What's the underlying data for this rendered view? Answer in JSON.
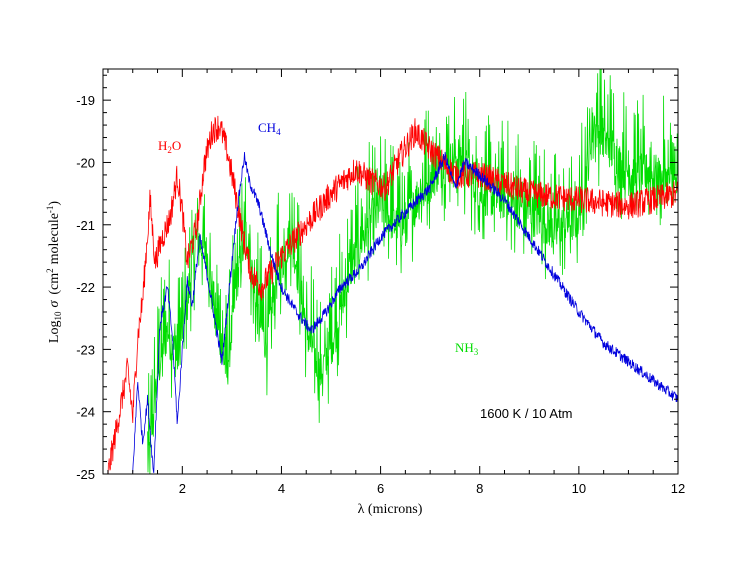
{
  "chart_data": {
    "type": "line",
    "title": "",
    "xlabel": "λ (microns)",
    "ylabel": "Log10 σ (cm2 molecule-1)",
    "ylabel_parts": {
      "log": "Log",
      "log_sub": "10",
      "sigma": "σ",
      "open": "(cm",
      "sup2": "2",
      "mid": "molecule",
      "supm1": "-1",
      "close": ")"
    },
    "xlim": [
      0.4,
      12
    ],
    "ylim": [
      -25,
      -18.5
    ],
    "xticks": [
      2,
      4,
      6,
      8,
      10,
      12
    ],
    "yticks": [
      -25,
      -24,
      -23,
      -22,
      -21,
      -20,
      -19
    ],
    "annotation": "1600 K / 10 Atm",
    "series": [
      {
        "name": "H2O",
        "label_main": "H",
        "label_sub": "2",
        "label_tail": "O",
        "color": "#ff0000",
        "noise": 0.45,
        "x": [
          0.5,
          0.9,
          1.0,
          1.1,
          1.2,
          1.35,
          1.45,
          1.6,
          1.75,
          1.9,
          2.0,
          2.1,
          2.3,
          2.45,
          2.6,
          2.75,
          2.9,
          3.05,
          3.25,
          3.4,
          3.6,
          4.0,
          4.5,
          5.0,
          5.5,
          5.8,
          6.1,
          6.4,
          6.7,
          7.0,
          7.5,
          8.0,
          9.0,
          10.0,
          11.0,
          12.0
        ],
        "y": [
          -25.0,
          -23.3,
          -24.1,
          -22.8,
          -22.2,
          -20.6,
          -21.6,
          -21.2,
          -20.9,
          -20.2,
          -20.8,
          -21.6,
          -21.0,
          -20.0,
          -19.5,
          -19.4,
          -19.8,
          -20.4,
          -21.3,
          -21.8,
          -22.0,
          -21.5,
          -21.0,
          -20.5,
          -20.1,
          -20.3,
          -20.4,
          -19.9,
          -19.5,
          -19.8,
          -20.2,
          -20.2,
          -20.5,
          -20.6,
          -20.7,
          -20.5
        ]
      },
      {
        "name": "CH4",
        "label_main": "CH",
        "label_sub": "4",
        "label_tail": "",
        "color": "#0000dd",
        "noise": 0.18,
        "x": [
          1.0,
          1.1,
          1.2,
          1.3,
          1.42,
          1.55,
          1.7,
          1.8,
          1.9,
          2.0,
          2.1,
          2.2,
          2.35,
          2.5,
          2.65,
          2.8,
          2.95,
          3.1,
          3.25,
          3.35,
          3.55,
          3.8,
          4.0,
          4.3,
          4.6,
          4.9,
          5.2,
          5.6,
          6.0,
          6.5,
          7.0,
          7.3,
          7.5,
          7.7,
          8.0,
          8.5,
          9.0,
          9.5,
          10.0,
          10.5,
          11.0,
          11.5,
          12.0
        ],
        "y": [
          -25.0,
          -23.5,
          -24.5,
          -23.8,
          -25.0,
          -22.6,
          -22.0,
          -22.8,
          -24.2,
          -23.0,
          -21.9,
          -22.3,
          -21.2,
          -21.8,
          -22.5,
          -23.2,
          -22.0,
          -20.8,
          -19.9,
          -20.3,
          -20.7,
          -21.5,
          -22.0,
          -22.4,
          -22.7,
          -22.4,
          -22.0,
          -21.7,
          -21.2,
          -20.8,
          -20.4,
          -19.9,
          -20.4,
          -20.0,
          -20.2,
          -20.6,
          -21.2,
          -21.8,
          -22.4,
          -22.9,
          -23.2,
          -23.5,
          -23.8
        ]
      },
      {
        "name": "NH3",
        "label_main": "NH",
        "label_sub": "3",
        "label_tail": "",
        "color": "#00dd00",
        "noise": 1.4,
        "x": [
          1.3,
          1.5,
          1.7,
          1.9,
          2.1,
          2.3,
          2.5,
          2.7,
          2.9,
          3.1,
          3.3,
          3.5,
          3.7,
          3.9,
          4.2,
          4.5,
          4.8,
          5.1,
          5.4,
          5.7,
          6.0,
          6.4,
          6.8,
          7.2,
          7.6,
          8.0,
          8.5,
          9.0,
          9.5,
          10.0,
          10.3,
          10.5,
          10.8,
          11.0,
          11.5,
          12.0
        ],
        "y": [
          -25.0,
          -23.5,
          -22.8,
          -23.3,
          -22.3,
          -21.3,
          -21.6,
          -22.7,
          -23.5,
          -22.0,
          -21.2,
          -22.5,
          -23.0,
          -22.0,
          -21.2,
          -22.8,
          -23.5,
          -22.8,
          -21.8,
          -21.2,
          -20.8,
          -21.2,
          -20.6,
          -20.2,
          -20.0,
          -20.6,
          -20.7,
          -20.9,
          -21.2,
          -21.0,
          -19.5,
          -19.7,
          -20.1,
          -20.3,
          -20.3,
          -20.5
        ]
      }
    ]
  }
}
